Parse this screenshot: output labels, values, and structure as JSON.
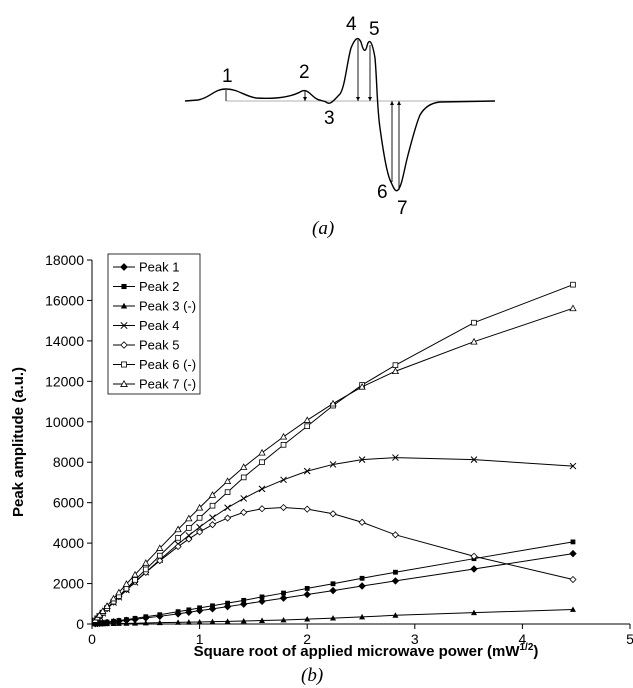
{
  "panel_a": {
    "caption": "(a)",
    "peak_labels": [
      "1",
      "2",
      "3",
      "4",
      "5",
      "6",
      "7"
    ]
  },
  "panel_b": {
    "caption": "(b)"
  },
  "chart_data": {
    "type": "line",
    "title": "",
    "xlabel": "Square root of applied microwave power (mW",
    "xlabel_sup": "1/2",
    "xlabel_close": ")",
    "ylabel": "Peak amplitude (a.u.)",
    "xlim": [
      0,
      5
    ],
    "ylim": [
      0,
      18000
    ],
    "xticks": [
      0,
      1,
      2,
      3,
      4,
      5
    ],
    "yticks": [
      0,
      2000,
      4000,
      6000,
      8000,
      10000,
      12000,
      14000,
      16000,
      18000
    ],
    "grid": false,
    "legend_position": "top-left",
    "x": [
      0.03,
      0.05,
      0.07,
      0.1,
      0.14,
      0.2,
      0.25,
      0.32,
      0.4,
      0.5,
      0.63,
      0.8,
      0.9,
      1.0,
      1.12,
      1.26,
      1.41,
      1.58,
      1.78,
      2.0,
      2.24,
      2.51,
      2.82,
      3.55,
      4.47
    ],
    "series": [
      {
        "name": "Peak 1",
        "marker": "diamond-filled",
        "values": [
          15,
          25,
          35,
          50,
          75,
          110,
          140,
          180,
          230,
          300,
          380,
          500,
          580,
          660,
          750,
          860,
          980,
          1120,
          1280,
          1460,
          1650,
          1880,
          2130,
          2720,
          3480
        ]
      },
      {
        "name": "Peak 2",
        "marker": "square-filled",
        "values": [
          20,
          30,
          45,
          65,
          95,
          135,
          170,
          220,
          280,
          360,
          460,
          610,
          700,
          800,
          900,
          1030,
          1170,
          1340,
          1530,
          1760,
          1990,
          2260,
          2560,
          3230,
          4060
        ]
      },
      {
        "name": "Peak 3 (-)",
        "marker": "triangle-filled",
        "values": [
          3,
          5,
          7,
          10,
          14,
          20,
          25,
          32,
          40,
          50,
          65,
          80,
          90,
          100,
          115,
          130,
          150,
          170,
          200,
          240,
          290,
          350,
          430,
          560,
          720
        ]
      },
      {
        "name": "Peak 4",
        "marker": "x",
        "values": [
          150,
          260,
          370,
          530,
          750,
          1060,
          1320,
          1680,
          2060,
          2560,
          3180,
          3950,
          4380,
          4790,
          5260,
          5750,
          6210,
          6680,
          7130,
          7560,
          7890,
          8130,
          8230,
          8130,
          7810
        ]
      },
      {
        "name": "Peak 5",
        "marker": "diamond-open",
        "values": [
          160,
          260,
          380,
          540,
          760,
          1080,
          1350,
          1710,
          2090,
          2550,
          3130,
          3830,
          4200,
          4550,
          4910,
          5240,
          5520,
          5700,
          5760,
          5680,
          5450,
          5030,
          4410,
          3350,
          2200
        ]
      },
      {
        "name": "Peak 6 (-)",
        "marker": "square-open",
        "values": [
          170,
          280,
          390,
          560,
          780,
          1110,
          1380,
          1750,
          2180,
          2700,
          3380,
          4260,
          4750,
          5250,
          5850,
          6520,
          7250,
          8000,
          8860,
          9780,
          10800,
          11820,
          12800,
          14900,
          16780
        ]
      },
      {
        "name": "Peak 7 (-)",
        "marker": "triangle-open",
        "values": [
          200,
          320,
          450,
          640,
          890,
          1260,
          1560,
          1980,
          2440,
          3020,
          3750,
          4680,
          5220,
          5750,
          6380,
          7060,
          7760,
          8470,
          9260,
          10080,
          10900,
          11730,
          12500,
          13960,
          15610
        ]
      }
    ]
  }
}
